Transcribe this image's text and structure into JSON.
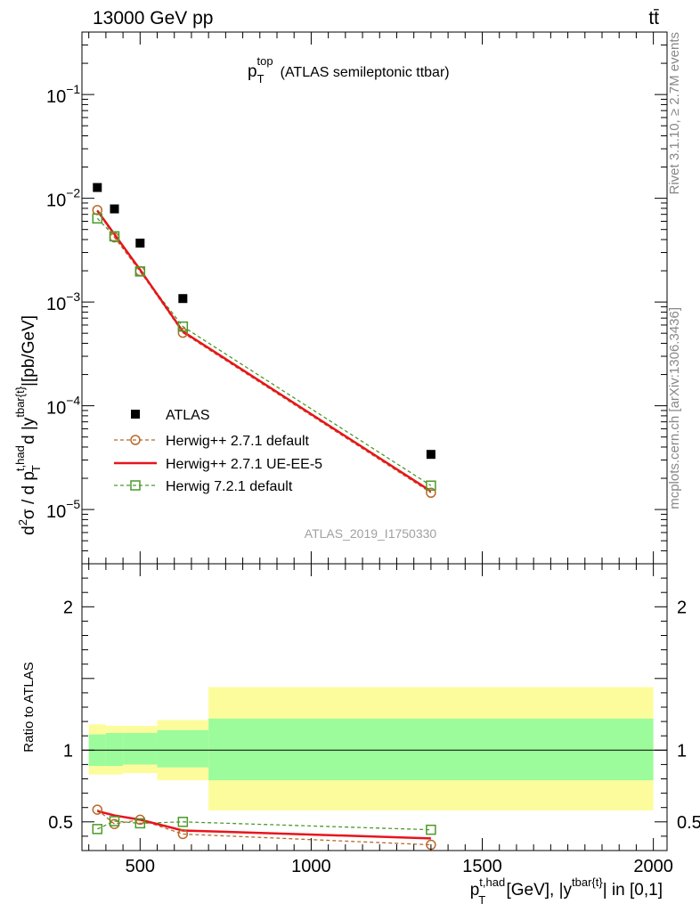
{
  "header": {
    "left": "13000 GeV pp",
    "right": "tt̄"
  },
  "side_labels": {
    "rivet": "Rivet 3.1.10, ≥ 2.7M events",
    "mcplots": "mcplots.cern.ch [arXiv:1306.3436]"
  },
  "watermark": "ATLAS_2019_I1750330",
  "colors": {
    "data": "#000000",
    "herwig271_default": "#b8692a",
    "herwig271_ueee5": "#e8141c",
    "herwig721_default": "#4a9a2a",
    "band_inner": "#9cfc9c",
    "band_outer": "#fcfc9c"
  },
  "chart_data": [
    {
      "type": "scatter",
      "title_main": "p",
      "title_sub": "T",
      "title_sup": "top",
      "title_rest": "(ATLAS semileptonic ttbar)",
      "yscale": "log",
      "ylim": [
        3e-06,
        0.4
      ],
      "xlim": [
        330,
        2040
      ],
      "ylabel_parts": {
        "a": "d",
        "a_sup": "2",
        "b": "σ  /  d p",
        "b_sup": "t,had",
        "b_sub": "T",
        "c": " d |y",
        "c_sup": "tbar{t}",
        "d": "|[pb/GeV]"
      },
      "yticks": [
        {
          "value": 1e-05,
          "base": "10",
          "exp": "−5"
        },
        {
          "value": 0.0001,
          "base": "10",
          "exp": "−4"
        },
        {
          "value": 0.001,
          "base": "10",
          "exp": "−3"
        },
        {
          "value": 0.01,
          "base": "10",
          "exp": "−2"
        },
        {
          "value": 0.1,
          "base": "10",
          "exp": "−1"
        }
      ],
      "legend_position": "lower-left",
      "series": [
        {
          "name": "ATLAS",
          "marker": "filled-square",
          "x": [
            375,
            425,
            500,
            625,
            1350
          ],
          "y": [
            0.0127,
            0.0079,
            0.0037,
            0.00108,
            3.4e-05
          ]
        },
        {
          "name": "Herwig++ 2.7.1 default",
          "marker": "open-circle",
          "line": "dashed",
          "x": [
            375,
            425,
            500,
            625,
            1350
          ],
          "y": [
            0.0077,
            0.0042,
            0.00198,
            0.000505,
            1.45e-05
          ]
        },
        {
          "name": "Herwig++ 2.7.1 UE-EE-5",
          "marker": "none",
          "line": "solid",
          "x": [
            375,
            425,
            500,
            625,
            1350
          ],
          "y": [
            0.0076,
            0.0045,
            0.00205,
            0.00052,
            1.5e-05
          ]
        },
        {
          "name": "Herwig 7.2.1 default",
          "marker": "open-square",
          "line": "dashed",
          "x": [
            375,
            425,
            500,
            625,
            1350
          ],
          "y": [
            0.0064,
            0.0043,
            0.00197,
            0.00058,
            1.7e-05
          ]
        }
      ]
    },
    {
      "type": "scatter",
      "ylabel": "Ratio to ATLAS",
      "xlabel_parts": {
        "a": "p",
        "a_sup": "t,had",
        "a_sub": "T",
        "b": " [GeV], |y",
        "b_sup": "tbar{t}",
        "c": "| in [0,1]"
      },
      "xlim": [
        330,
        2040
      ],
      "ylim": [
        0.3,
        2.3
      ],
      "yticks": [
        "0.5",
        "1",
        "2"
      ],
      "xticks": [
        "500",
        "1000",
        "1500",
        "2000"
      ],
      "reference_line": 1,
      "bands": [
        {
          "x0": 350,
          "x1": 400,
          "inner": [
            0.89,
            1.11
          ],
          "outer": [
            0.83,
            1.18
          ]
        },
        {
          "x0": 400,
          "x1": 450,
          "inner": [
            0.89,
            1.12
          ],
          "outer": [
            0.83,
            1.17
          ]
        },
        {
          "x0": 450,
          "x1": 550,
          "inner": [
            0.9,
            1.12
          ],
          "outer": [
            0.84,
            1.17
          ]
        },
        {
          "x0": 550,
          "x1": 700,
          "inner": [
            0.88,
            1.14
          ],
          "outer": [
            0.79,
            1.21
          ]
        },
        {
          "x0": 700,
          "x1": 2000,
          "inner": [
            0.79,
            1.22
          ],
          "outer": [
            0.58,
            1.44
          ]
        }
      ],
      "series": [
        {
          "name": "Herwig++ 2.7.1 default",
          "x": [
            375,
            425,
            500,
            625,
            1350
          ],
          "y": [
            0.585,
            0.485,
            0.515,
            0.415,
            0.34
          ]
        },
        {
          "name": "Herwig++ 2.7.1 UE-EE-5",
          "x": [
            375,
            425,
            500,
            625,
            1350
          ],
          "y": [
            0.575,
            0.545,
            0.515,
            0.44,
            0.385
          ]
        },
        {
          "name": "Herwig 7.2.1 default",
          "x": [
            375,
            425,
            500,
            625,
            1350
          ],
          "y": [
            0.45,
            0.505,
            0.49,
            0.5,
            0.445
          ]
        }
      ]
    }
  ]
}
